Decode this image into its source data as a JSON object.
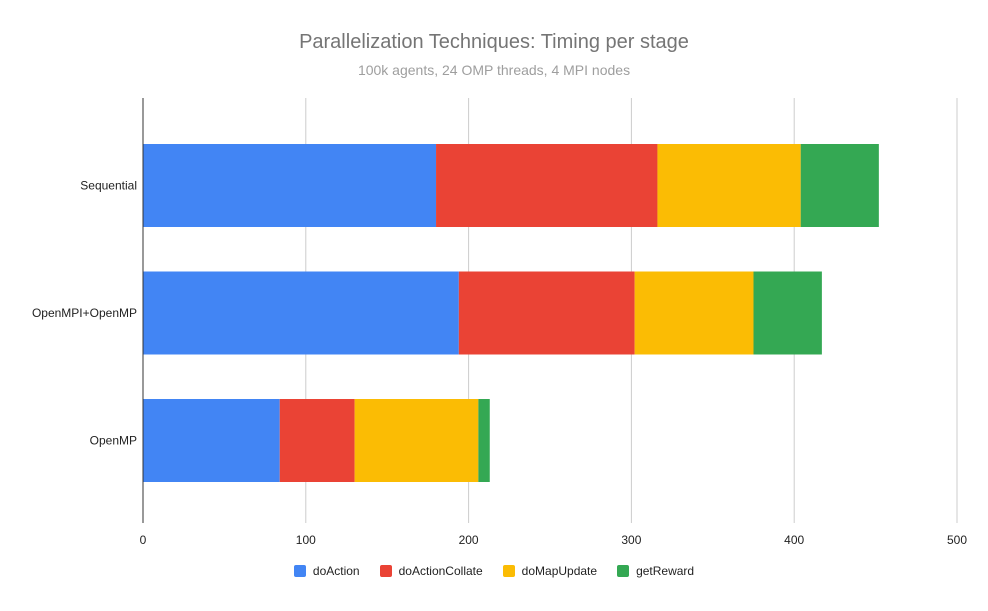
{
  "chart_data": {
    "type": "bar",
    "orientation": "horizontal",
    "stacked": true,
    "title": "Parallelization Techniques: Timing per stage",
    "subtitle": "100k agents, 24 OMP threads, 4 MPI nodes",
    "categories": [
      "Sequential",
      "OpenMPI+OpenMP",
      "OpenMP"
    ],
    "series": [
      {
        "name": "doAction",
        "color": "#4285f4",
        "values": [
          180,
          194,
          84
        ]
      },
      {
        "name": "doActionCollate",
        "color": "#ea4335",
        "values": [
          136,
          108,
          46
        ]
      },
      {
        "name": "doMapUpdate",
        "color": "#fbbc04",
        "values": [
          88,
          73,
          76
        ]
      },
      {
        "name": "getReward",
        "color": "#34a853",
        "values": [
          48,
          42,
          7
        ]
      }
    ],
    "xlim": [
      0,
      500
    ],
    "xticks": [
      "0",
      "100",
      "200",
      "300",
      "400",
      "500"
    ],
    "grid": true,
    "legend_position": "bottom"
  }
}
